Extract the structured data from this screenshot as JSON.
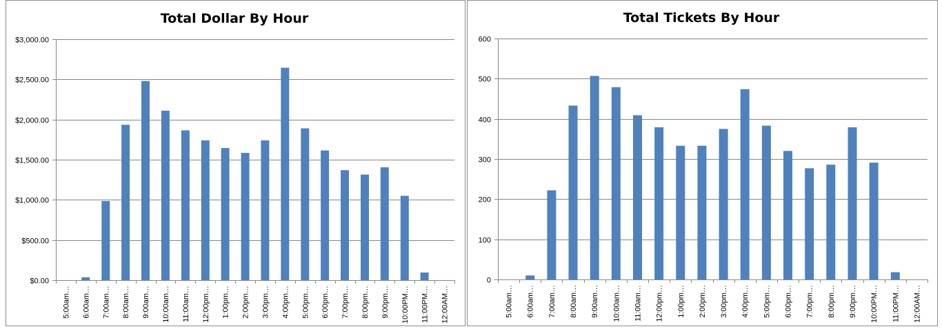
{
  "colors": {
    "bar": "#4f81bd"
  },
  "chart_data": [
    {
      "type": "bar",
      "title": "Total Dollar By Hour",
      "categories": [
        "5:00am…",
        "6:00am…",
        "7:00am…",
        "8:00am…",
        "9:00am…",
        "10:00am…",
        "11:00am…",
        "12:00pm…",
        "1:00pm…",
        "2:00pm…",
        "3:00pm…",
        "4:00pm…",
        "5:00pm…",
        "6:00pm…",
        "7:00pm…",
        "8:00pm…",
        "9:00pm…",
        "10:00PM…",
        "11:00PM…",
        "12:00AM…"
      ],
      "values": [
        0,
        35,
        985,
        1935,
        2480,
        2110,
        1865,
        1740,
        1645,
        1585,
        1740,
        2645,
        1890,
        1615,
        1370,
        1315,
        1405,
        1050,
        95,
        0
      ],
      "yticks": [
        0,
        500,
        1000,
        1500,
        2000,
        2500,
        3000
      ],
      "ytick_labels": [
        "$0.00",
        "$500.00",
        "$1,000.00",
        "$1,500.00",
        "$2,000.00",
        "$2,500.00",
        "$3,000.00"
      ],
      "ylim": [
        0,
        3000
      ],
      "grid": true,
      "legend": "none"
    },
    {
      "type": "bar",
      "title": "Total Tickets By Hour",
      "categories": [
        "5:00am…",
        "6:00am…",
        "7:00am…",
        "8:00am…",
        "9:00am…",
        "10:00am…",
        "11:00am…",
        "12:00pm…",
        "1:00pm…",
        "2:00pm…",
        "3:00pm…",
        "4:00pm…",
        "5:00pm…",
        "6:00pm…",
        "7:00pm…",
        "8:00pm…",
        "9:00pm…",
        "10:00PM…",
        "11:00PM…",
        "12:00AM…"
      ],
      "values": [
        0,
        10,
        222,
        433,
        507,
        479,
        409,
        379,
        333,
        333,
        375,
        474,
        383,
        320,
        277,
        286,
        379,
        291,
        18,
        0
      ],
      "yticks": [
        0,
        100,
        200,
        300,
        400,
        500,
        600
      ],
      "ytick_labels": [
        "0",
        "100",
        "200",
        "300",
        "400",
        "500",
        "600"
      ],
      "ylim": [
        0,
        600
      ],
      "grid": true,
      "legend": "none"
    }
  ]
}
